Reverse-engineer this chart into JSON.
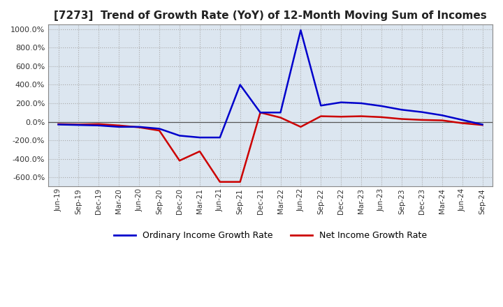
{
  "title": "[7273]  Trend of Growth Rate (YoY) of 12-Month Moving Sum of Incomes",
  "title_fontsize": 11,
  "background_color": "#dce6f0",
  "plot_bg_color": "#dce6f0",
  "grid_color": "#aaaaaa",
  "x_labels": [
    "Jun-19",
    "Sep-19",
    "Dec-19",
    "Mar-20",
    "Jun-20",
    "Sep-20",
    "Dec-20",
    "Mar-21",
    "Jun-21",
    "Sep-21",
    "Dec-21",
    "Mar-22",
    "Jun-22",
    "Sep-22",
    "Dec-22",
    "Mar-23",
    "Jun-23",
    "Sep-23",
    "Dec-23",
    "Mar-24",
    "Jun-24",
    "Sep-24"
  ],
  "ylim": [
    -700,
    1050
  ],
  "yticks": [
    -600,
    -400,
    -200,
    0,
    200,
    400,
    600,
    800,
    1000
  ],
  "ordinary_income_growth": [
    -30,
    -35,
    -40,
    -55,
    -55,
    -75,
    -150,
    -170,
    -170,
    400,
    100,
    100,
    990,
    175,
    210,
    200,
    170,
    130,
    105,
    70,
    20,
    -30
  ],
  "net_income_growth": [
    -25,
    -30,
    -25,
    -40,
    -60,
    -95,
    -420,
    -320,
    -650,
    -650,
    100,
    45,
    -55,
    60,
    55,
    60,
    50,
    30,
    20,
    15,
    -15,
    -35
  ],
  "ordinary_color": "#0000cc",
  "net_color": "#cc0000",
  "line_width": 1.8,
  "legend_labels": [
    "Ordinary Income Growth Rate",
    "Net Income Growth Rate"
  ],
  "xlabel": "",
  "ylabel": ""
}
